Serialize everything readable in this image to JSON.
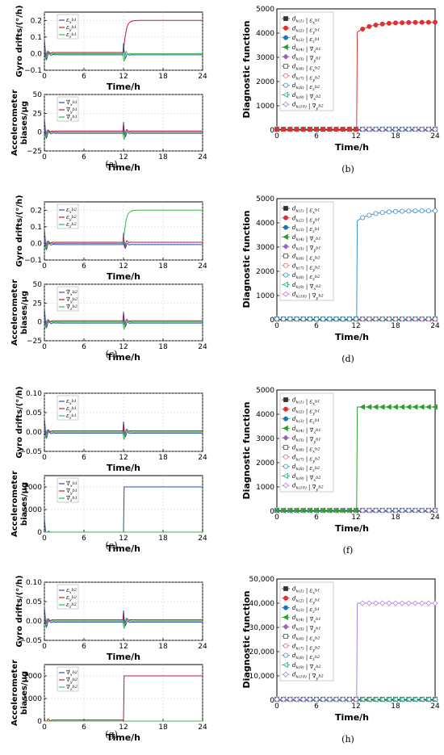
{
  "colors": {
    "blue": "#1f4fb5",
    "red": "#c0143c",
    "green": "#3cb44b",
    "black": "#333333",
    "diag_colors": [
      "#333333",
      "#e03030",
      "#1f77b4",
      "#2ca02c",
      "#9467bd",
      "#555555",
      "#e07070",
      "#3a8fd0",
      "#20b070",
      "#b080e0"
    ]
  },
  "panels": [
    {
      "caption": "(a)",
      "gyro": {
        "ylabel": "Gyro drifts/(°/h)",
        "yticks": [
          "0.2",
          "0.1",
          "0.0",
          "−0.1"
        ],
        "ylim": [
          -0.1,
          0.25
        ],
        "legend": [
          "ε_x^{b1}",
          "ε_y^{b1}",
          "ε_z^{b1}"
        ],
        "step_series": 1,
        "step_value": 0.2
      },
      "acc": {
        "ylabel": "Accelerometer biases/μg",
        "yticks": [
          "50",
          "25",
          "0",
          "−25"
        ],
        "ylim": [
          -25,
          50
        ],
        "legend": [
          "∇_x^{b1}",
          "∇_y^{b1}",
          "∇_z^{b1}"
        ],
        "step_series": -1,
        "step_value": 0
      },
      "xlabel": "Time/h",
      "xticks": [
        "0",
        "6",
        "12",
        "18",
        "24"
      ]
    },
    {
      "caption": "(b)",
      "ylabel": "Diagnostic function",
      "xlabel": "Time/h",
      "yticks": [
        "5000",
        "4000",
        "3000",
        "2000",
        "1000",
        "0"
      ],
      "ylim": [
        0,
        5000
      ],
      "xticks": [
        "0",
        "6",
        "12",
        "18",
        "24"
      ],
      "active": 1,
      "active_value": 4450,
      "legend": [
        "d_k(1) | ε_x^{b1}",
        "d_k(2) | ε_y^{b1}",
        "d_k(3) | ε_z^{b1}",
        "d_k(4) | ∇_x^{b1}",
        "d_k(5) | ∇_y^{b1}",
        "d_k(6) | ε_x^{b2}",
        "d_k(7) | ε_y^{b2}",
        "d_k(8) | ε_z^{b2}",
        "d_k(9) | ∇_x^{b2}",
        "d_k(10) | ∇_y^{b2}"
      ]
    },
    {
      "caption": "(c)",
      "gyro": {
        "ylabel": "Gyro drifts/(°/h)",
        "yticks": [
          "0.2",
          "0.1",
          "0.0",
          "−0.1"
        ],
        "ylim": [
          -0.1,
          0.25
        ],
        "legend": [
          "ε_x^{b2}",
          "ε_y^{b2}",
          "ε_z^{b2}"
        ],
        "step_series": 2,
        "step_value": 0.2
      },
      "acc": {
        "ylabel": "Accelerometer biases/μg",
        "yticks": [
          "50",
          "25",
          "0",
          "−25"
        ],
        "ylim": [
          -25,
          50
        ],
        "legend": [
          "∇_x^{b2}",
          "∇_y^{b2}",
          "∇_z^{b2}"
        ],
        "step_series": -1,
        "step_value": 0
      },
      "xlabel": "Time/h",
      "xticks": [
        "0",
        "6",
        "12",
        "18",
        "24"
      ]
    },
    {
      "caption": "(d)",
      "ylabel": "Diagnostic function",
      "xlabel": "Time/h",
      "yticks": [
        "5000",
        "4000",
        "3000",
        "2000",
        "1000",
        "0"
      ],
      "ylim": [
        0,
        5000
      ],
      "xticks": [
        "0",
        "6",
        "12",
        "18",
        "24"
      ],
      "active": 7,
      "active_value": 4500,
      "legend": [
        "d_k(1) | ε_x^{b1}",
        "d_k(2) | ε_y^{b1}",
        "d_k(3) | ε_z^{b1}",
        "d_k(4) | ∇_x^{b1}",
        "d_k(5) | ∇_y^{b1}",
        "d_k(6) | ε_x^{b2}",
        "d_k(7) | ε_y^{b2}",
        "d_k(8) | ε_z^{b2}",
        "d_k(9) | ∇_x^{b2}",
        "d_k(10) | ∇_y^{b2}"
      ]
    },
    {
      "caption": "(e)",
      "gyro": {
        "ylabel": "Gyro drifts/(°/h)",
        "yticks": [
          "0.10",
          "0.05",
          "0.00",
          "−0.05"
        ],
        "ylim": [
          -0.05,
          0.1
        ],
        "legend": [
          "ε_x^{b1}",
          "ε_y^{b1}",
          "ε_z^{b1}"
        ],
        "step_series": -1,
        "step_value": 0
      },
      "acc": {
        "ylabel": "Accelerometer biases/μg",
        "yticks": [
          "2000",
          "1000",
          "0"
        ],
        "ylim": [
          0,
          2500
        ],
        "legend": [
          "∇_x^{b1}",
          "∇_y^{b1}",
          "∇_z^{b1}"
        ],
        "step_series": 0,
        "step_value": 2000
      },
      "xlabel": "Time/h",
      "xticks": [
        "0",
        "6",
        "12",
        "18",
        "24"
      ]
    },
    {
      "caption": "(f)",
      "ylabel": "Diagnostic function",
      "xlabel": "Time/h",
      "yticks": [
        "5000",
        "4000",
        "3000",
        "2000",
        "1000",
        "0"
      ],
      "ylim": [
        0,
        5000
      ],
      "xticks": [
        "0",
        "6",
        "12",
        "18",
        "24"
      ],
      "active": 3,
      "active_value": 4300,
      "legend": [
        "d_k(1) | ε_x^{b1}",
        "d_k(2) | ε_y^{b1}",
        "d_k(3) | ε_z^{b1}",
        "d_k(4) | ∇_x^{b1}",
        "d_k(5) | ∇_y^{b1}",
        "d_k(6) | ε_x^{b2}",
        "d_k(7) | ε_y^{b2}",
        "d_k(8) | ε_z^{b2}",
        "d_k(9) | ∇_x^{b2}",
        "d_k(10) | ∇_y^{b2}"
      ]
    },
    {
      "caption": "(g)",
      "gyro": {
        "ylabel": "Gyro drifts/(°/h)",
        "yticks": [
          "0.10",
          "0.05",
          "0.00",
          "−0.05"
        ],
        "ylim": [
          -0.05,
          0.1
        ],
        "legend": [
          "ε_x^{b2}",
          "ε_y^{b2}",
          "ε_z^{b2}"
        ],
        "step_series": -1,
        "step_value": 0
      },
      "acc": {
        "ylabel": "Accelerometer biases/μg",
        "yticks": [
          "2000",
          "1000",
          "0"
        ],
        "ylim": [
          0,
          2500
        ],
        "legend": [
          "∇_x^{b2}",
          "∇_y^{b2}",
          "∇_z^{b2}"
        ],
        "step_series": 1,
        "step_value": 2000
      },
      "xlabel": "Time/h",
      "xticks": [
        "0",
        "6",
        "12",
        "18",
        "24"
      ]
    },
    {
      "caption": "(h)",
      "ylabel": "Diagnostic function",
      "xlabel": "Time/h",
      "yticks": [
        "50,000",
        "40,000",
        "30,000",
        "20,000",
        "10,000",
        "0"
      ],
      "ylim": [
        0,
        50000
      ],
      "xticks": [
        "0",
        "6",
        "12",
        "18",
        "24"
      ],
      "active": 9,
      "active_value": 40000,
      "legend": [
        "d_k(1) | ε_x^{b1}",
        "d_k(2) | ε_y^{b1}",
        "d_k(3) | ε_z^{b1}",
        "d_k(4) | ∇_x^{b1}",
        "d_k(5) | ∇_y^{b1}",
        "d_k(6) | ε_x^{b2}",
        "d_k(7) | ε_y^{b2}",
        "d_k(8) | ε_z^{b2}",
        "d_k(9) | ∇_x^{b2}",
        "d_k(10) | ∇_y^{b2}"
      ]
    }
  ],
  "chart_data": [
    {
      "type": "line",
      "panel": "a-top",
      "title": "",
      "xlabel": "",
      "ylabel": "Gyro drifts/(°/h)",
      "ylim": [
        -0.1,
        0.25
      ],
      "xlim": [
        0,
        24
      ],
      "series": [
        {
          "name": "ε_x^{b1}",
          "values": [
            [
              0,
              0
            ],
            [
              24,
              0
            ]
          ]
        },
        {
          "name": "ε_y^{b1}",
          "values": [
            [
              0,
              0
            ],
            [
              12,
              0
            ],
            [
              12.5,
              0.19
            ],
            [
              24,
              0.2
            ]
          ]
        },
        {
          "name": "ε_z^{b1}",
          "values": [
            [
              0,
              0
            ],
            [
              24,
              0
            ]
          ]
        }
      ]
    },
    {
      "type": "line",
      "panel": "a-bottom",
      "xlabel": "Time/h",
      "ylabel": "Accelerometer biases/μg",
      "ylim": [
        -25,
        50
      ],
      "xlim": [
        0,
        24
      ],
      "series": [
        {
          "name": "∇_x^{b1}",
          "values": [
            [
              0,
              0
            ],
            [
              24,
              -5
            ]
          ]
        },
        {
          "name": "∇_y^{b1}",
          "values": [
            [
              0,
              0
            ],
            [
              24,
              5
            ]
          ]
        },
        {
          "name": "∇_z^{b1}",
          "values": [
            [
              0,
              0
            ],
            [
              24,
              0
            ]
          ]
        }
      ]
    },
    {
      "type": "line",
      "panel": "b",
      "xlabel": "Time/h",
      "ylabel": "Diagnostic function",
      "ylim": [
        0,
        5000
      ],
      "xlim": [
        0,
        24
      ],
      "series": [
        {
          "name": "d_k(2)",
          "values": [
            [
              12,
              0
            ],
            [
              13,
              4100
            ],
            [
              18,
              4400
            ],
            [
              24,
              4450
            ]
          ]
        }
      ]
    },
    {
      "type": "line",
      "panel": "c-top",
      "ylabel": "Gyro drifts/(°/h)",
      "ylim": [
        -0.1,
        0.25
      ],
      "xlim": [
        0,
        24
      ],
      "series": [
        {
          "name": "ε_z^{b2}",
          "values": [
            [
              0,
              0
            ],
            [
              12,
              0
            ],
            [
              12.5,
              0.19
            ],
            [
              24,
              0.2
            ]
          ]
        }
      ]
    },
    {
      "type": "line",
      "panel": "c-bottom",
      "xlabel": "Time/h",
      "ylabel": "Accelerometer biases/μg",
      "ylim": [
        -25,
        50
      ],
      "xlim": [
        0,
        24
      ],
      "series": [
        {
          "name": "∇_x^{b2}",
          "values": [
            [
              0,
              0
            ],
            [
              24,
              0
            ]
          ]
        }
      ]
    },
    {
      "type": "line",
      "panel": "d",
      "xlabel": "Time/h",
      "ylabel": "Diagnostic function",
      "ylim": [
        0,
        5000
      ],
      "xlim": [
        0,
        24
      ],
      "series": [
        {
          "name": "d_k(8)",
          "values": [
            [
              12,
              0
            ],
            [
              13,
              4200
            ],
            [
              18,
              4450
            ],
            [
              24,
              4500
            ]
          ]
        }
      ]
    },
    {
      "type": "line",
      "panel": "e-top",
      "ylabel": "Gyro drifts/(°/h)",
      "ylim": [
        -0.05,
        0.1
      ],
      "xlim": [
        0,
        24
      ],
      "series": [
        {
          "name": "ε_x^{b1}",
          "values": [
            [
              0,
              0
            ],
            [
              24,
              -0.015
            ]
          ]
        }
      ]
    },
    {
      "type": "line",
      "panel": "e-bottom",
      "xlabel": "Time/h",
      "ylabel": "Accelerometer biases/μg",
      "ylim": [
        0,
        2500
      ],
      "xlim": [
        0,
        24
      ],
      "series": [
        {
          "name": "∇_x^{b1}",
          "values": [
            [
              0,
              0
            ],
            [
              12,
              0
            ],
            [
              12.1,
              2000
            ],
            [
              24,
              2000
            ]
          ]
        }
      ]
    },
    {
      "type": "line",
      "panel": "f",
      "xlabel": "Time/h",
      "ylabel": "Diagnostic function",
      "ylim": [
        0,
        5000
      ],
      "xlim": [
        0,
        24
      ],
      "series": [
        {
          "name": "d_k(4)",
          "values": [
            [
              12,
              0
            ],
            [
              12.5,
              4300
            ],
            [
              24,
              4300
            ]
          ]
        }
      ]
    },
    {
      "type": "line",
      "panel": "g-top",
      "ylabel": "Gyro drifts/(°/h)",
      "ylim": [
        -0.05,
        0.1
      ],
      "xlim": [
        0,
        24
      ],
      "series": [
        {
          "name": "ε_x^{b2}",
          "values": [
            [
              0,
              0
            ],
            [
              24,
              0
            ]
          ]
        }
      ]
    },
    {
      "type": "line",
      "panel": "g-bottom",
      "xlabel": "Time/h",
      "ylabel": "Accelerometer biases/μg",
      "ylim": [
        0,
        2500
      ],
      "xlim": [
        0,
        24
      ],
      "series": [
        {
          "name": "∇_y^{b2}",
          "values": [
            [
              0,
              0
            ],
            [
              12,
              0
            ],
            [
              12.1,
              2000
            ],
            [
              24,
              2000
            ]
          ]
        }
      ]
    },
    {
      "type": "line",
      "panel": "h",
      "xlabel": "Time/h",
      "ylabel": "Diagnostic function",
      "ylim": [
        0,
        50000
      ],
      "xlim": [
        0,
        24
      ],
      "series": [
        {
          "name": "d_k(10)",
          "values": [
            [
              12,
              0
            ],
            [
              12.5,
              40000
            ],
            [
              24,
              40000
            ]
          ]
        }
      ]
    }
  ]
}
